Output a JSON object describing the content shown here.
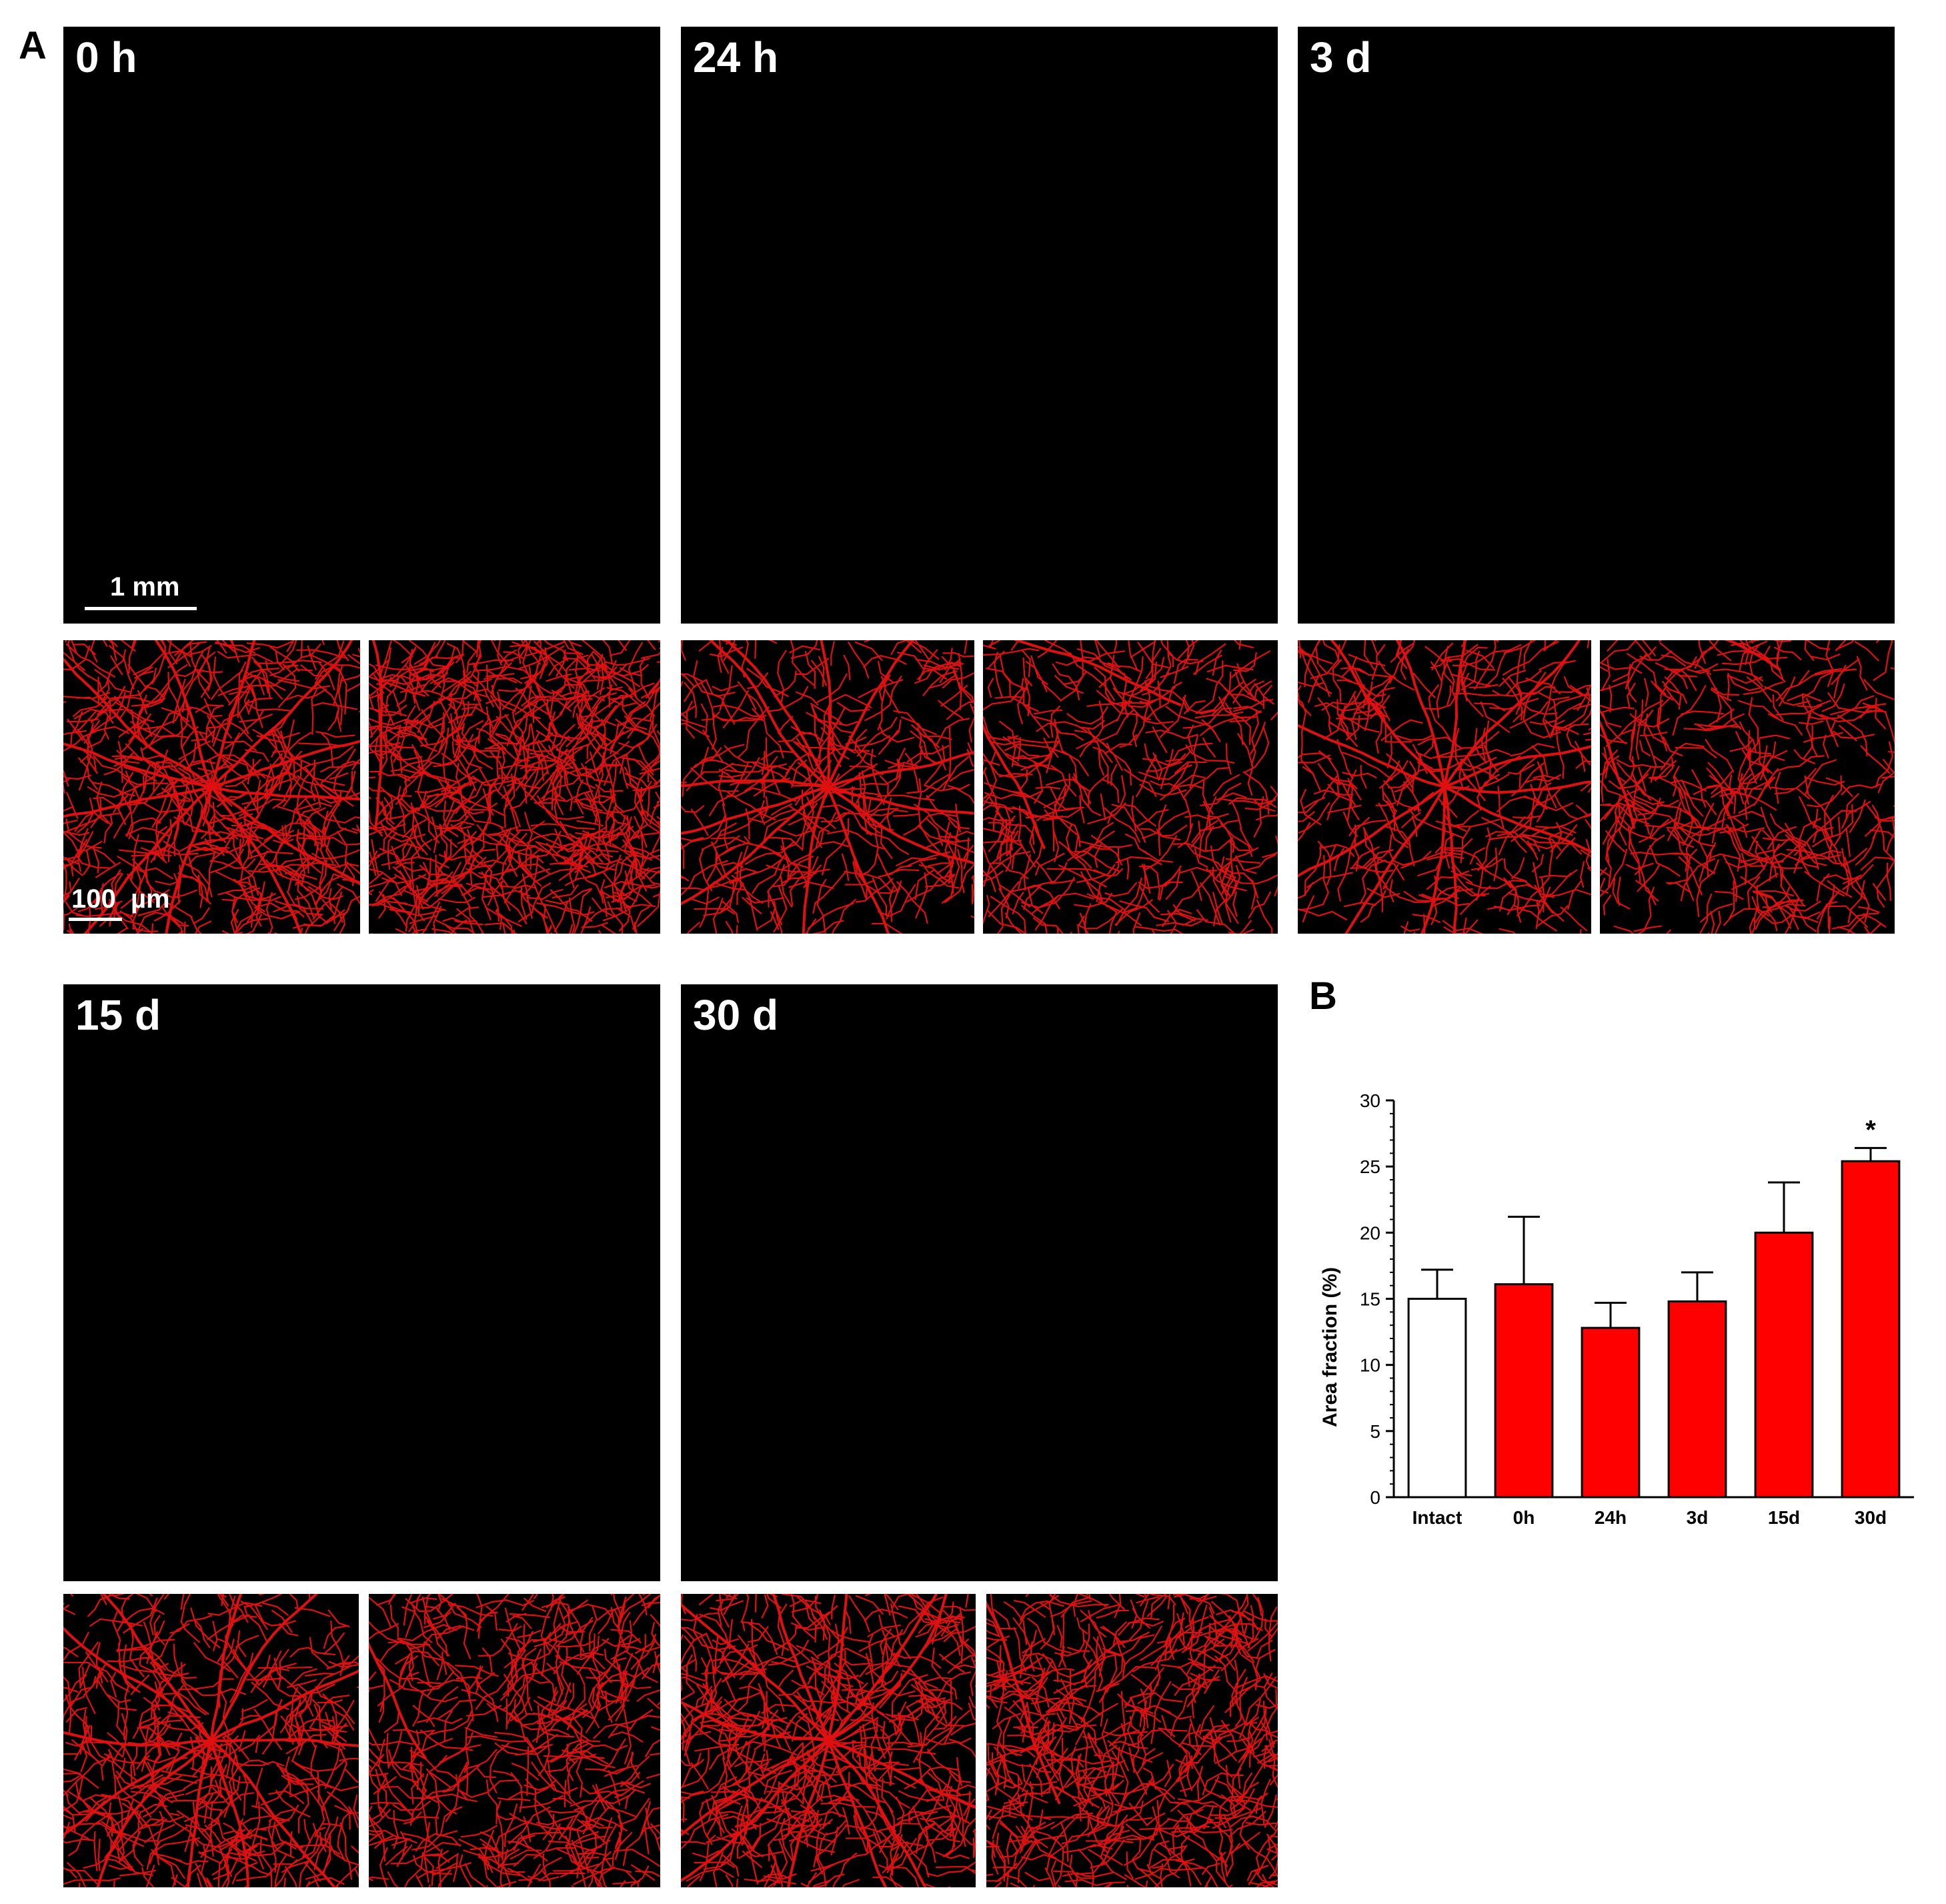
{
  "panel_a_label": "A",
  "panel_b_label": "B",
  "panels": [
    {
      "time_label": "0 h"
    },
    {
      "time_label": "24 h"
    },
    {
      "time_label": "3 d"
    },
    {
      "time_label": "15 d"
    },
    {
      "time_label": "30 d"
    }
  ],
  "scalebar_whole": "1 mm",
  "scalebar_zoom": "100  µm",
  "colors": {
    "vessel": "#e01010",
    "background": "#000000",
    "bar_fill": "#ff0000"
  },
  "chart_data": {
    "type": "bar",
    "categories": [
      "Intact",
      "0h",
      "24h",
      "3d",
      "15d",
      "30d"
    ],
    "values": [
      15.0,
      16.1,
      12.8,
      14.8,
      20.0,
      25.4
    ],
    "errors": [
      2.2,
      5.1,
      1.9,
      2.2,
      3.8,
      1.0
    ],
    "bar_fills": [
      "#ffffff",
      "#ff0000",
      "#ff0000",
      "#ff0000",
      "#ff0000",
      "#ff0000"
    ],
    "ylabel": "Area fraction (%)",
    "xlabel": "",
    "ylim": [
      0,
      30
    ],
    "yticks": [
      "0",
      "5",
      "10",
      "15",
      "20",
      "25",
      "30"
    ],
    "significance": {
      "category": "30d",
      "mark": "*"
    }
  }
}
